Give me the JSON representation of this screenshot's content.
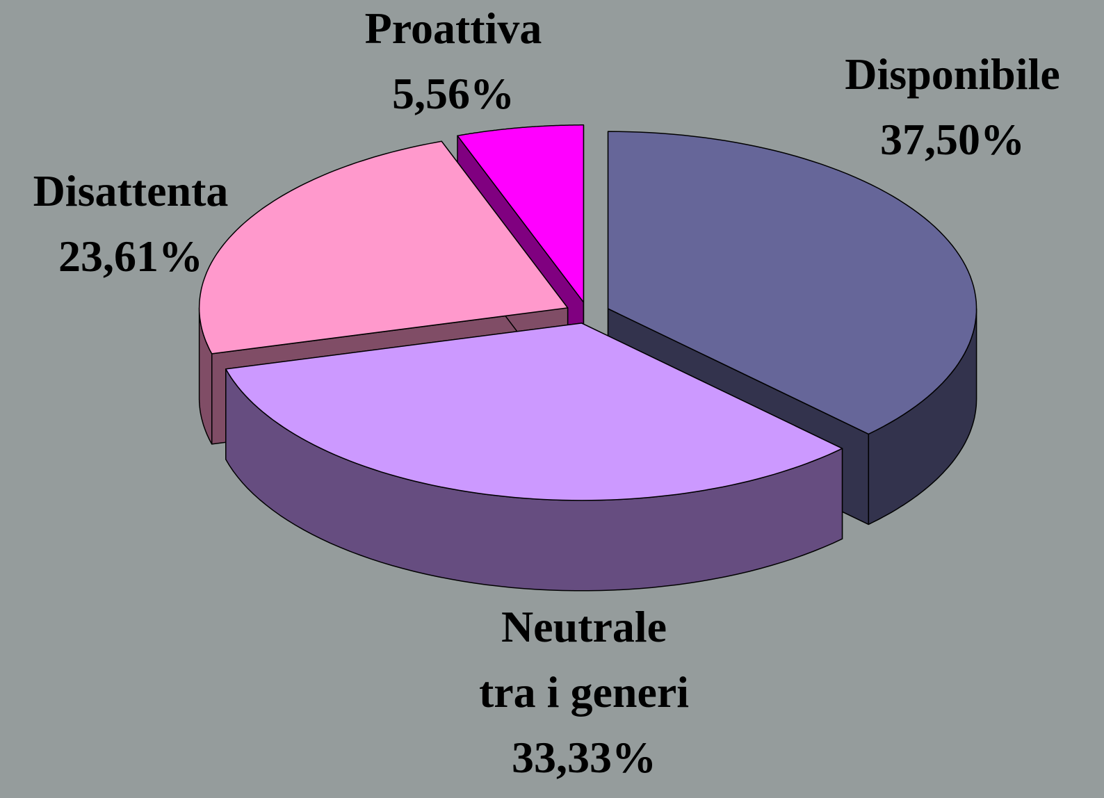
{
  "chart_data": {
    "type": "pie3d",
    "categories": [
      "Disponibile",
      "Neutrale\ntra i generi",
      "Disattenta",
      "Proattiva"
    ],
    "values": [
      37.5,
      33.33,
      23.61,
      5.56
    ],
    "value_labels": [
      "37,50%",
      "33,33%",
      "23,61%",
      "5,56%"
    ],
    "colors": [
      "#666699",
      "#cc99ff",
      "#ff99cc",
      "#ff00ff"
    ]
  }
}
